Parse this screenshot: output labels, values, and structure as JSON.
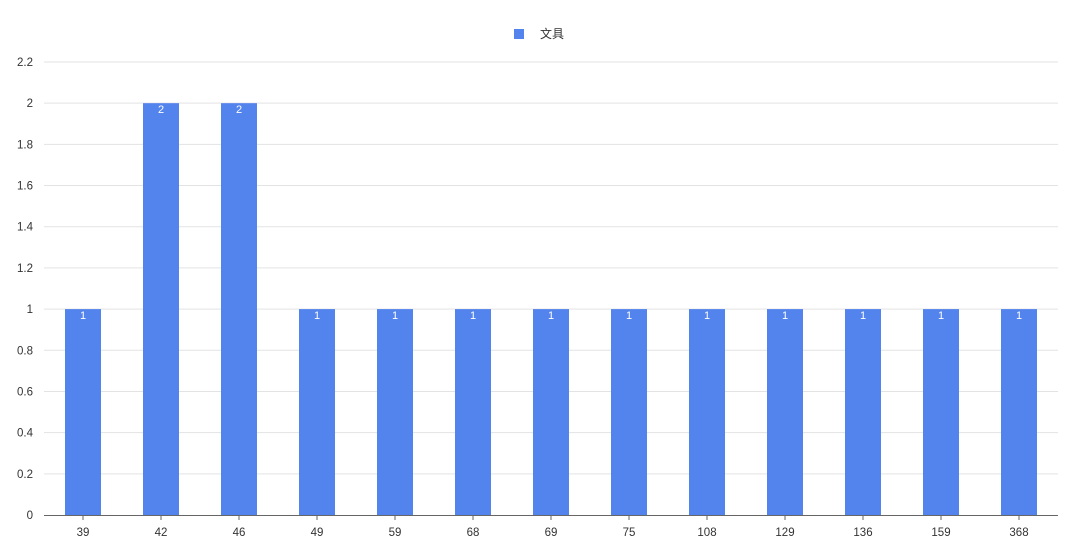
{
  "chart_data": {
    "type": "bar",
    "categories": [
      "39",
      "42",
      "46",
      "49",
      "59",
      "68",
      "69",
      "75",
      "108",
      "129",
      "136",
      "159",
      "368"
    ],
    "series": [
      {
        "name": "文具",
        "values": [
          1,
          2,
          2,
          1,
          1,
          1,
          1,
          1,
          1,
          1,
          1,
          1,
          1
        ],
        "color": "#5383EC"
      }
    ],
    "ylim": [
      0,
      2.2
    ],
    "yticks": [
      "0",
      "0.2",
      "0.4",
      "0.6",
      "0.8",
      "1",
      "1.2",
      "1.4",
      "1.6",
      "1.8",
      "2",
      "2.2"
    ],
    "grid": true,
    "legend_position": "top-center",
    "data_labels": true
  }
}
